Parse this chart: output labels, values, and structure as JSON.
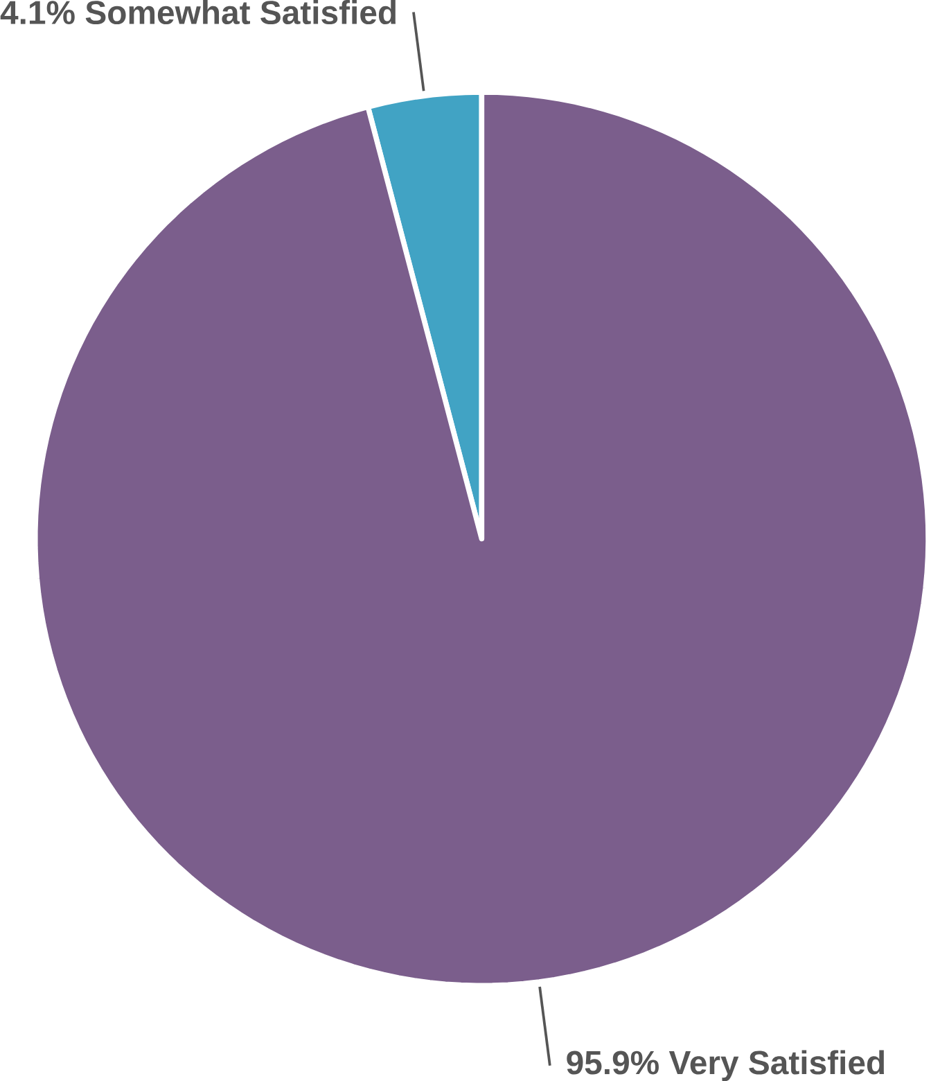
{
  "chart_data": {
    "type": "pie",
    "categories": [
      "Somewhat Satisfied",
      "Very Satisfied"
    ],
    "values": [
      4.1,
      95.9
    ],
    "value_labels": [
      "4.1%",
      "95.9%"
    ],
    "colors": [
      "#41a3c4",
      "#7b5e8c"
    ]
  }
}
